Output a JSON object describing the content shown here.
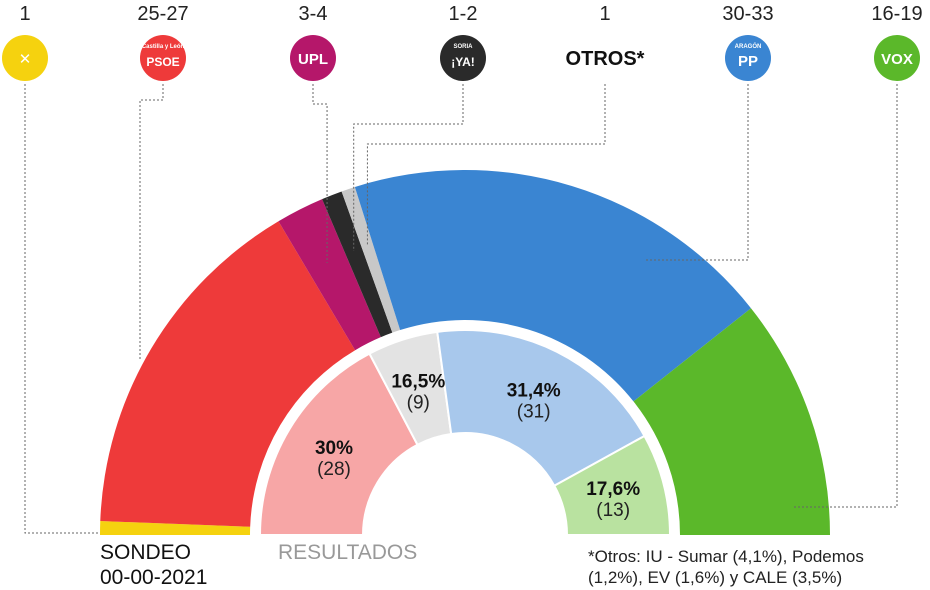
{
  "chart_data": [
    {
      "type": "semicircle",
      "title": "",
      "label": "SONDEO",
      "date": "00-00-2021",
      "parties": [
        {
          "key": "xav",
          "seats": "1",
          "value": 1,
          "color": "#f5d20f",
          "logo_text": "✕"
        },
        {
          "key": "psoe",
          "seats": "25-27",
          "value": 26,
          "color": "#ee3a3a",
          "logo_text": "PSOE",
          "logo_sub": "Castilla y León"
        },
        {
          "key": "upl",
          "seats": "3-4",
          "value": 3.5,
          "color": "#b5176a",
          "logo_text": "UPL"
        },
        {
          "key": "soria",
          "seats": "1-2",
          "value": 1.5,
          "color": "#2a2a2a",
          "logo_text": "¡YA!",
          "logo_sub": "SORIA"
        },
        {
          "key": "otros",
          "seats": "1",
          "value": 1,
          "color": "#c8c8c8",
          "logo_text": "OTROS*"
        },
        {
          "key": "pp",
          "seats": "30-33",
          "value": 31.5,
          "color": "#3a85d2",
          "logo_text": "PP",
          "logo_sub": "ARAGÓN"
        },
        {
          "key": "vox",
          "seats": "16-19",
          "value": 17.5,
          "color": "#5bb82a",
          "logo_text": "VOX"
        }
      ]
    },
    {
      "type": "semicircle",
      "label": "RESULTADOS",
      "segments": [
        {
          "key": "psoe",
          "pct": "30%",
          "seats": "(28)",
          "value": 28,
          "color": "#f7a6a6"
        },
        {
          "key": "otros",
          "pct": "16,5%",
          "seats": "(9)",
          "value": 9,
          "color": "#e3e3e3"
        },
        {
          "key": "pp",
          "pct": "31,4%",
          "seats": "(31)",
          "value": 31,
          "color": "#a8c8ec"
        },
        {
          "key": "vox",
          "pct": "17,6%",
          "seats": "(13)",
          "value": 13,
          "color": "#b9e2a0"
        }
      ]
    }
  ],
  "footnote": "*Otros: IU - Sumar (4,1%), Podemos (1,2%), EV (1,6%) y CALE (3,5%)"
}
